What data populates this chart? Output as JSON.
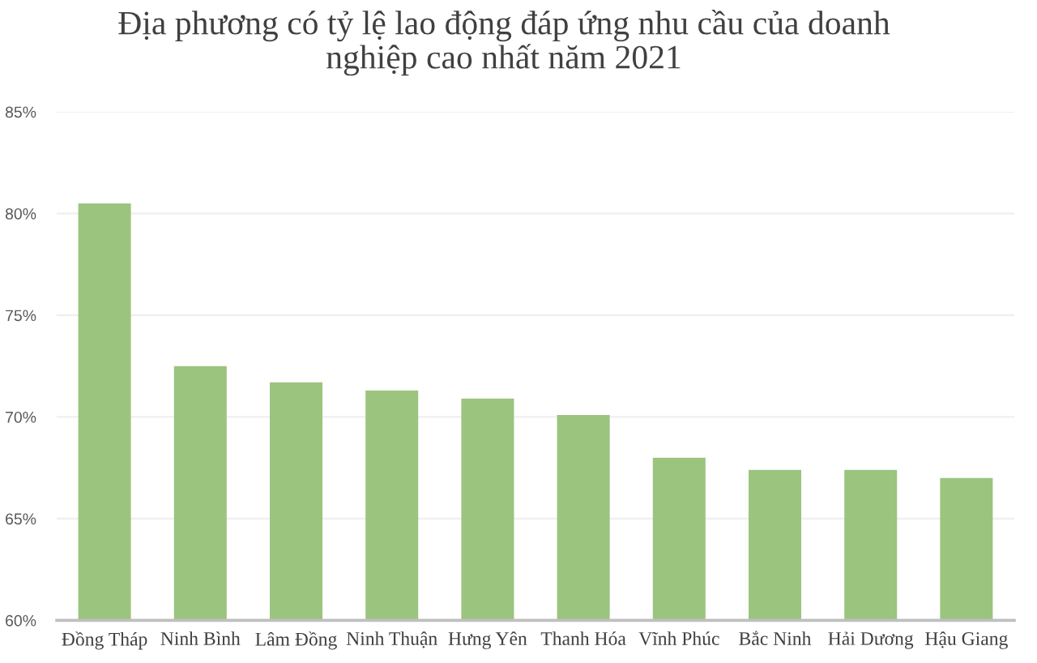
{
  "chart_data": {
    "type": "bar",
    "title": "Địa phương có tỷ lệ lao động đáp ứng nhu cầu của doanh nghiệp cao nhất năm 2021",
    "categories": [
      "Đồng Tháp",
      "Ninh Bình",
      "Lâm Đồng",
      "Ninh Thuận",
      "Hưng Yên",
      "Thanh Hóa",
      "Vĩnh Phúc",
      "Bắc Ninh",
      "Hải Dương",
      "Hậu Giang"
    ],
    "values": [
      80.5,
      72.5,
      71.7,
      71.3,
      70.9,
      70.1,
      68.0,
      67.4,
      67.4,
      67.0
    ],
    "color": "#9bc47e",
    "ylim": [
      60,
      85
    ],
    "yticks": [
      {
        "value": 60,
        "label": "60%"
      },
      {
        "value": 65,
        "label": "65%"
      },
      {
        "value": 70,
        "label": "70%"
      },
      {
        "value": 75,
        "label": "75%"
      },
      {
        "value": 80,
        "label": "80%"
      },
      {
        "value": 85,
        "label": "85%"
      }
    ],
    "grid": "y"
  }
}
